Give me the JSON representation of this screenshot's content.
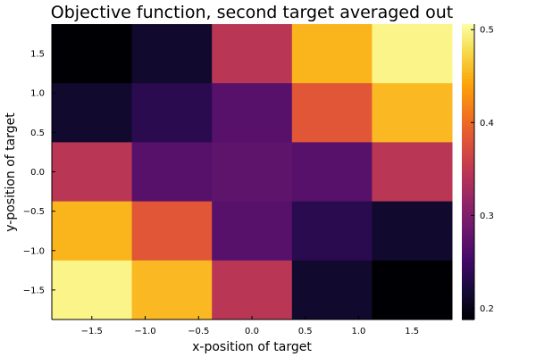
{
  "chart_data": {
    "type": "heatmap",
    "title": "Objective function, second target averaged out",
    "xlabel": "x-position of target",
    "ylabel": "y-position of target",
    "xlim": [
      -1.875,
      1.875
    ],
    "ylim": [
      -1.875,
      1.875
    ],
    "x_centers": [
      -1.5,
      -0.75,
      0.0,
      0.75,
      1.5
    ],
    "y_centers": [
      1.5,
      0.75,
      0.0,
      -0.75,
      -1.5
    ],
    "x_ticks": [
      {
        "value": -1.5,
        "label": "−1.5"
      },
      {
        "value": -1.0,
        "label": "−1.0"
      },
      {
        "value": -0.5,
        "label": "−0.5"
      },
      {
        "value": 0.0,
        "label": "0.0"
      },
      {
        "value": 0.5,
        "label": "0.5"
      },
      {
        "value": 1.0,
        "label": "1.0"
      },
      {
        "value": 1.5,
        "label": "1.5"
      }
    ],
    "y_ticks": [
      {
        "value": 1.5,
        "label": "1.5"
      },
      {
        "value": 1.0,
        "label": "1.0"
      },
      {
        "value": 0.5,
        "label": "0.5"
      },
      {
        "value": 0.0,
        "label": "0.0"
      },
      {
        "value": -0.5,
        "label": "−0.5"
      },
      {
        "value": -1.0,
        "label": "−1.0"
      },
      {
        "value": -1.5,
        "label": "−1.5"
      }
    ],
    "z": [
      [
        0.188,
        0.213,
        0.345,
        0.452,
        0.497
      ],
      [
        0.213,
        0.235,
        0.268,
        0.383,
        0.455
      ],
      [
        0.345,
        0.268,
        0.275,
        0.268,
        0.345
      ],
      [
        0.452,
        0.383,
        0.268,
        0.235,
        0.213
      ],
      [
        0.497,
        0.455,
        0.345,
        0.213,
        0.188
      ]
    ],
    "colorscale": "inferno",
    "colorbar": {
      "range": [
        0.188,
        0.506
      ],
      "ticks": [
        {
          "value": 0.2,
          "label": "0.2"
        },
        {
          "value": 0.3,
          "label": "0.3"
        },
        {
          "value": 0.4,
          "label": "0.4"
        },
        {
          "value": 0.5,
          "label": "0.5"
        }
      ]
    },
    "grid": false,
    "legend": "colorbar-right"
  }
}
